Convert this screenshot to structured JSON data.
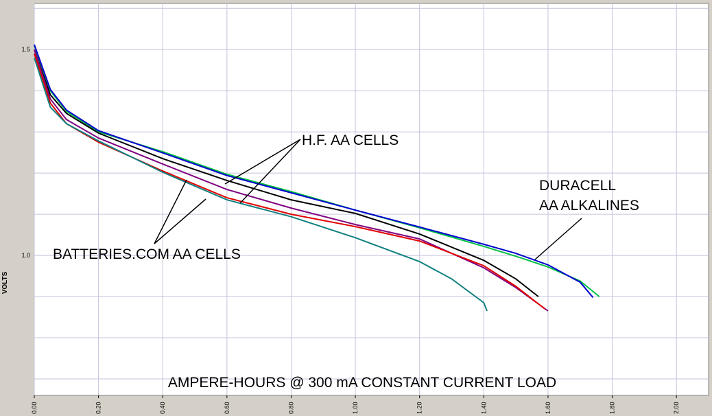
{
  "chart_data": {
    "type": "line",
    "x_label": "AMPERE-HOURS @ 300 mA CONSTANT CURRENT LOAD",
    "y_label": "VOLTS",
    "annotations": [
      "H.F. AA CELLS",
      "BATTERIES.COM AA CELLS",
      [
        "DURACELL",
        "AA ALKALINES"
      ]
    ],
    "xlim": [
      0,
      2.1
    ],
    "ylim": [
      0.66,
      1.612
    ],
    "xticks": [
      {
        "value": 0,
        "label": "0.00"
      },
      {
        "value": 0.2,
        "label": "0.20"
      },
      {
        "value": 0.4,
        "label": "0.40"
      },
      {
        "value": 0.6,
        "label": "0.60"
      },
      {
        "value": 0.8,
        "label": "0.80"
      },
      {
        "value": 1,
        "label": "1.00"
      },
      {
        "value": 1.2,
        "label": "1.20"
      },
      {
        "value": 1.4,
        "label": "1.40"
      },
      {
        "value": 1.6,
        "label": "1.60"
      },
      {
        "value": 1.8,
        "label": "1.80"
      },
      {
        "value": 2,
        "label": "2.00"
      }
    ],
    "yticks": [
      {
        "value": 1,
        "label": "1.0"
      },
      1.5
    ],
    "y_minor_gridlines": [
      0.7,
      0.8,
      0.9,
      1.1,
      1.2,
      1.3,
      1.4,
      1.6
    ],
    "grid": true,
    "grid_color": "#c4c4dc",
    "series": [
      {
        "color": "#00c040",
        "x": [
          0,
          0.05,
          0.1,
          0.2,
          0.4,
          0.6,
          0.8,
          1.0,
          1.2,
          1.4,
          1.5,
          1.6,
          1.7,
          1.76
        ],
        "values": [
          1.51,
          1.4,
          1.35,
          1.3,
          1.252,
          1.197,
          1.155,
          1.11,
          1.067,
          1.022,
          0.998,
          0.972,
          0.938,
          0.9
        ]
      },
      {
        "color": "#0000d0",
        "x": [
          0,
          0.05,
          0.1,
          0.2,
          0.4,
          0.6,
          0.8,
          1.0,
          1.2,
          1.4,
          1.5,
          1.6,
          1.7,
          1.74
        ],
        "values": [
          1.512,
          1.403,
          1.353,
          1.303,
          1.249,
          1.194,
          1.152,
          1.11,
          1.069,
          1.027,
          1.005,
          0.977,
          0.935,
          0.898
        ]
      },
      {
        "color": "#000000",
        "x": [
          0,
          0.05,
          0.1,
          0.2,
          0.4,
          0.6,
          0.8,
          1.0,
          1.2,
          1.4,
          1.5,
          1.57
        ],
        "values": [
          1.5,
          1.39,
          1.345,
          1.297,
          1.235,
          1.182,
          1.135,
          1.102,
          1.052,
          0.988,
          0.943,
          0.9
        ]
      },
      {
        "color": "#800080",
        "x": [
          0,
          0.05,
          0.1,
          0.2,
          0.4,
          0.6,
          0.8,
          1.0,
          1.2,
          1.4,
          1.5,
          1.6
        ],
        "values": [
          1.5,
          1.38,
          1.33,
          1.285,
          1.222,
          1.16,
          1.115,
          1.075,
          1.04,
          0.97,
          0.922,
          0.865
        ]
      },
      {
        "color": "#e00000",
        "x": [
          0,
          0.05,
          0.1,
          0.2,
          0.4,
          0.6,
          0.8,
          1.0,
          1.2,
          1.4,
          1.5,
          1.59
        ],
        "values": [
          1.49,
          1.37,
          1.32,
          1.275,
          1.205,
          1.14,
          1.1,
          1.07,
          1.035,
          0.975,
          0.925,
          0.87
        ]
      },
      {
        "color": "#108080",
        "x": [
          0,
          0.05,
          0.1,
          0.2,
          0.4,
          0.6,
          0.8,
          1.0,
          1.2,
          1.3,
          1.4,
          1.41
        ],
        "values": [
          1.48,
          1.36,
          1.32,
          1.278,
          1.202,
          1.135,
          1.094,
          1.043,
          0.985,
          0.943,
          0.885,
          0.865
        ]
      }
    ]
  }
}
